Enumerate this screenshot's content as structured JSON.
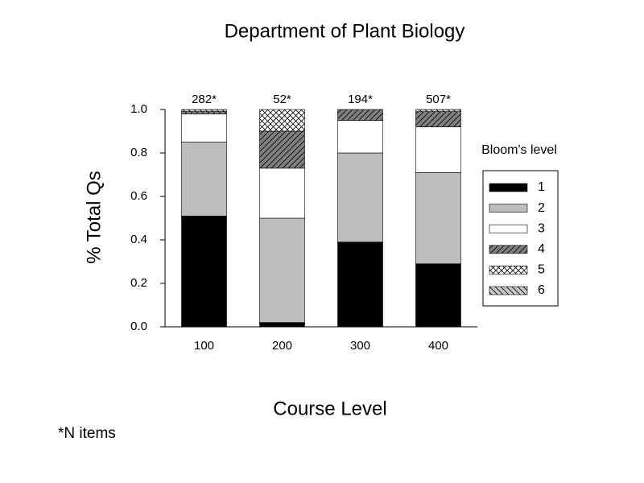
{
  "chart_data": {
    "type": "stacked_bar",
    "title": "Department of Plant Biology",
    "y_label": "% Total Qs",
    "x_label": "Course Level",
    "legend_title": "Bloom's level",
    "footnote": "*N items",
    "categories": [
      "100",
      "200",
      "300",
      "400"
    ],
    "annotations": [
      "282*",
      "52*",
      "194*",
      "507*"
    ],
    "series": [
      {
        "name": "1",
        "color": "#000000",
        "hatch": "none",
        "values": [
          0.51,
          0.02,
          0.39,
          0.29
        ]
      },
      {
        "name": "2",
        "color": "#bdbdbd",
        "hatch": "none",
        "values": [
          0.34,
          0.48,
          0.41,
          0.42
        ]
      },
      {
        "name": "3",
        "color": "#ffffff",
        "hatch": "none",
        "values": [
          0.13,
          0.23,
          0.15,
          0.21
        ]
      },
      {
        "name": "4",
        "color": "#808080",
        "hatch": "/",
        "values": [
          0.01,
          0.17,
          0.05,
          0.07
        ]
      },
      {
        "name": "5",
        "color": "#ffffff",
        "hatch": "x",
        "values": [
          0,
          0.1,
          0,
          0
        ]
      },
      {
        "name": "6",
        "color": "#c8c8c8",
        "hatch": "\\",
        "values": [
          0.01,
          0,
          0,
          0.01
        ]
      }
    ],
    "ylim": [
      0,
      1
    ],
    "yticks": [
      {
        "value": 0,
        "label": "0.0"
      },
      0.2,
      0.4,
      0.6,
      0.8,
      {
        "value": 1,
        "label": "1.0"
      }
    ],
    "legend": "right"
  }
}
